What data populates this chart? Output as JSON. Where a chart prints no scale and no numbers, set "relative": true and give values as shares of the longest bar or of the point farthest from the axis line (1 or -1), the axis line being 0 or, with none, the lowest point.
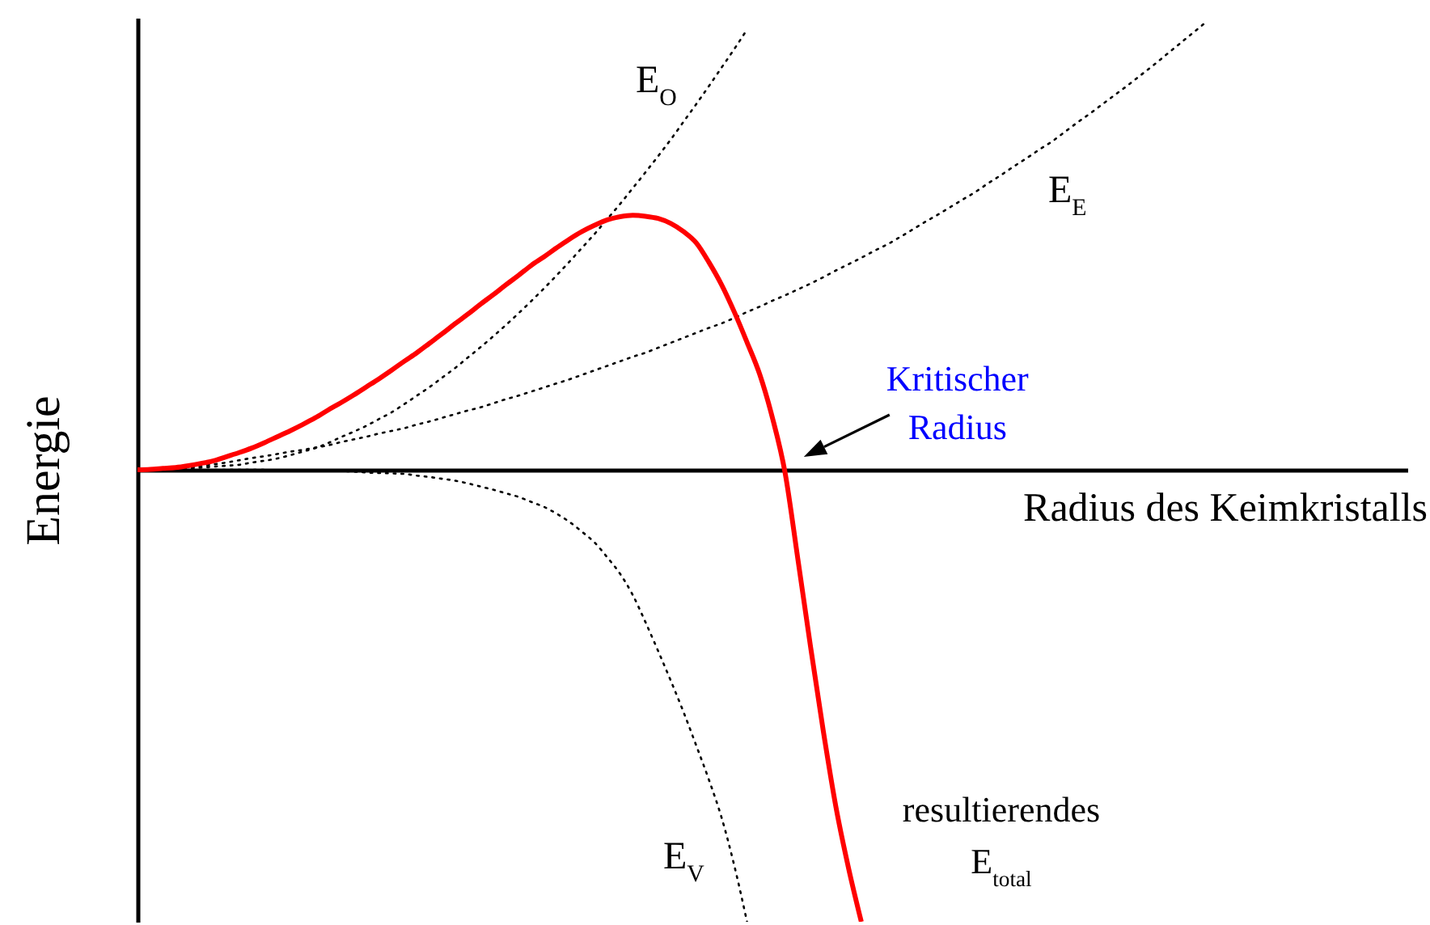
{
  "chart_data": {
    "type": "line",
    "relative": true,
    "xlabel": "Radius des Keimkristalls",
    "ylabel": "Energie",
    "categories": [
      null,
      null,
      null,
      null,
      null,
      null,
      null,
      null,
      null,
      null,
      null,
      null,
      null,
      null,
      null,
      null,
      null,
      null,
      null,
      null,
      null,
      null,
      null,
      null,
      null,
      null,
      null,
      null,
      null,
      null,
      null,
      null,
      null,
      null,
      null,
      null,
      null,
      null,
      null,
      null,
      null,
      null,
      null,
      null,
      null,
      null,
      null,
      null,
      null,
      null,
      null,
      null,
      null,
      null,
      null,
      null,
      null,
      null,
      null,
      null,
      null,
      null,
      null,
      null,
      null,
      null,
      null,
      null,
      null,
      null,
      null,
      null,
      null,
      null,
      null,
      null,
      null,
      null,
      null,
      null,
      null,
      null,
      null,
      null,
      null,
      null,
      null,
      null,
      null,
      null,
      null,
      null,
      null,
      null,
      null,
      null,
      null,
      null,
      null,
      null,
      null
    ],
    "series": [
      {
        "name": "E$_{O}$",
        "color": "#000000",
        "line_style": "dotted",
        "values": [
          0,
          0.001,
          0.001,
          0.002,
          0.003,
          0.005,
          0.007,
          0.009,
          0.011,
          0.016,
          0.02,
          0.025,
          0.032,
          0.04,
          0.048,
          0.059,
          0.072,
          0.084,
          0.097,
          0.112,
          0.127,
          0.145,
          0.164,
          0.183,
          0.204,
          0.225,
          0.248,
          0.271,
          0.295,
          0.32,
          0.346,
          0.373,
          0.401,
          0.43,
          0.46,
          0.491,
          0.522,
          0.555,
          0.588,
          0.623,
          0.658,
          0.694,
          0.731,
          0.77,
          0.809,
          0.849,
          0.89,
          0.931,
          0.974,
          null,
          null,
          null,
          null,
          null,
          null,
          null,
          null,
          null,
          null,
          null,
          null,
          null,
          null,
          null,
          null,
          null,
          null,
          null,
          null,
          null,
          null,
          null,
          null,
          null,
          null,
          null,
          null,
          null,
          null,
          null,
          null,
          null,
          null,
          null,
          null,
          null,
          null,
          null,
          null,
          null,
          null,
          null,
          null,
          null,
          null,
          null,
          null,
          null,
          null,
          null,
          null
        ]
      },
      {
        "name": "E$_{E}$",
        "color": "#000000",
        "line_style": "dotted",
        "values": [
          0,
          0,
          0.001,
          0.003,
          0.005,
          0.008,
          0.012,
          0.016,
          0.021,
          0.026,
          0.03,
          0.035,
          0.04,
          0.044,
          0.049,
          0.054,
          0.061,
          0.067,
          0.073,
          0.08,
          0.086,
          0.092,
          0.1,
          0.107,
          0.115,
          0.123,
          0.131,
          0.138,
          0.147,
          0.156,
          0.164,
          0.173,
          0.182,
          0.191,
          0.2,
          0.21,
          0.22,
          0.23,
          0.24,
          0.25,
          0.259,
          0.27,
          0.281,
          0.292,
          0.303,
          0.314,
          0.324,
          0.336,
          0.349,
          0.361,
          0.374,
          0.386,
          0.399,
          0.412,
          0.426,
          0.441,
          0.455,
          0.469,
          0.484,
          0.498,
          0.514,
          0.531,
          0.548,
          0.564,
          0.581,
          0.598,
          0.615,
          0.634,
          0.652,
          0.671,
          0.689,
          0.708,
          0.726,
          0.747,
          0.768,
          0.788,
          0.809,
          0.83,
          0.851,
          0.873,
          0.895,
          0.918,
          0.941,
          0.964,
          0.987,
          null,
          null,
          null,
          null,
          null,
          null,
          null,
          null,
          null,
          null,
          null,
          null,
          null,
          null,
          null,
          null
        ]
      },
      {
        "name": "E$_{V}$",
        "color": "#000000",
        "line_style": "dotted",
        "values": [
          0,
          0,
          0,
          0,
          0,
          0,
          0,
          0,
          0,
          0,
          0,
          -0.001,
          -0.001,
          -0.001,
          -0.002,
          -0.002,
          -0.003,
          -0.004,
          -0.006,
          -0.007,
          -0.008,
          -0.009,
          -0.013,
          -0.016,
          -0.02,
          -0.024,
          -0.03,
          -0.037,
          -0.044,
          -0.052,
          -0.06,
          -0.071,
          -0.082,
          -0.097,
          -0.115,
          -0.137,
          -0.161,
          -0.194,
          -0.23,
          -0.277,
          -0.337,
          -0.401,
          -0.467,
          -0.536,
          -0.61,
          -0.686,
          -0.77,
          -0.876,
          -1,
          null,
          null,
          null,
          null,
          null,
          null,
          null,
          null,
          null,
          null,
          null,
          null,
          null,
          null,
          null,
          null,
          null,
          null,
          null,
          null,
          null,
          null,
          null,
          null,
          null,
          null,
          null,
          null,
          null,
          null,
          null,
          null,
          null,
          null,
          null,
          null,
          null,
          null,
          null,
          null,
          null,
          null,
          null,
          null,
          null,
          null,
          null,
          null,
          null,
          null,
          null,
          null
        ]
      },
      {
        "name": "resultierendes E$_{total}$",
        "color": "#ff0000",
        "line_style": "solid",
        "values": [
          0,
          0.001,
          0.003,
          0.005,
          0.009,
          0.014,
          0.02,
          0.029,
          0.038,
          0.048,
          0.06,
          0.073,
          0.086,
          0.1,
          0.115,
          0.132,
          0.148,
          0.165,
          0.183,
          0.201,
          0.22,
          0.24,
          0.259,
          0.28,
          0.301,
          0.323,
          0.344,
          0.366,
          0.387,
          0.409,
          0.43,
          0.452,
          0.471,
          0.491,
          0.51,
          0.527,
          0.541,
          0.553,
          0.56,
          0.563,
          0.561,
          0.556,
          0.545,
          0.527,
          0.502,
          0.459,
          0.409,
          0.349,
          0.282,
          0.211,
          0.115,
          -0.007,
          -0.197,
          -0.391,
          -0.577,
          -0.746,
          -0.882,
          -1,
          null,
          null,
          null,
          null,
          null,
          null,
          null,
          null,
          null,
          null,
          null,
          null,
          null,
          null,
          null,
          null,
          null,
          null,
          null,
          null,
          null,
          null,
          null,
          null,
          null,
          null,
          null,
          null,
          null,
          null,
          null,
          null,
          null,
          null,
          null,
          null,
          null,
          null,
          null,
          null,
          null,
          null,
          null
        ]
      }
    ],
    "annotations": [
      "Kritischer Radius"
    ]
  }
}
